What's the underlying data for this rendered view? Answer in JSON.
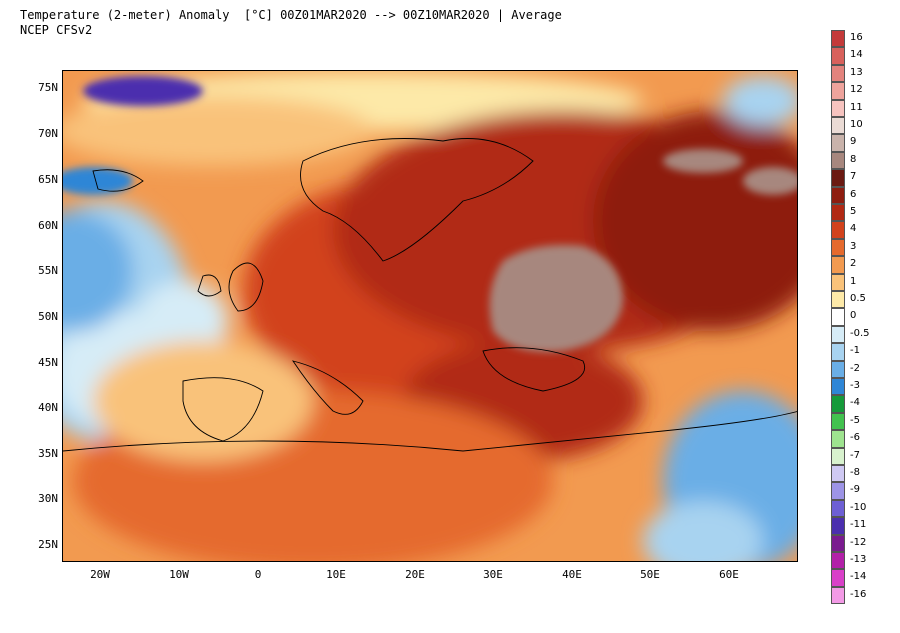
{
  "header": {
    "title_line1": "Temperature (2-meter) Anomaly  [°C] 00Z01MAR2020 --> 00Z10MAR2020 | Average",
    "title_line2": "NCEP CFSv2"
  },
  "map": {
    "lat_labels": [
      "75N",
      "70N",
      "65N",
      "60N",
      "55N",
      "50N",
      "45N",
      "40N",
      "35N",
      "30N",
      "25N"
    ],
    "lon_labels": [
      "20W",
      "10W",
      "0",
      "10E",
      "20E",
      "30E",
      "40E",
      "50E",
      "60E"
    ]
  },
  "colorbar": {
    "levels": [
      {
        "label": "16",
        "color": "#c33a3a"
      },
      {
        "label": "14",
        "color": "#d8615c"
      },
      {
        "label": "13",
        "color": "#e3837d"
      },
      {
        "label": "12",
        "color": "#eea39c"
      },
      {
        "label": "11",
        "color": "#f6c3bf"
      },
      {
        "label": "10",
        "color": "#eadbd5"
      },
      {
        "label": "9",
        "color": "#c9b3ab"
      },
      {
        "label": "8",
        "color": "#a7877e"
      },
      {
        "label": "7",
        "color": "#6b1a12"
      },
      {
        "label": "6",
        "color": "#8e1d10"
      },
      {
        "label": "5",
        "color": "#b12914"
      },
      {
        "label": "4",
        "color": "#d2421c"
      },
      {
        "label": "3",
        "color": "#e56a2e"
      },
      {
        "label": "2",
        "color": "#f29a50"
      },
      {
        "label": "1",
        "color": "#f9c27a"
      },
      {
        "label": "0.5",
        "color": "#fde9a8"
      },
      {
        "label": "0",
        "color": "#ffffff"
      },
      {
        "label": "-0.5",
        "color": "#d6ecf7"
      },
      {
        "label": "-1",
        "color": "#a8d3f0"
      },
      {
        "label": "-2",
        "color": "#6aaee6"
      },
      {
        "label": "-3",
        "color": "#2f86d6"
      },
      {
        "label": "-4",
        "color": "#159a3a"
      },
      {
        "label": "-5",
        "color": "#42c24f"
      },
      {
        "label": "-6",
        "color": "#9ee38f"
      },
      {
        "label": "-7",
        "color": "#d8f2ce"
      },
      {
        "label": "-8",
        "color": "#cfc9f3"
      },
      {
        "label": "-9",
        "color": "#9d94e6"
      },
      {
        "label": "-10",
        "color": "#6d5fd4"
      },
      {
        "label": "-11",
        "color": "#4b2fae"
      },
      {
        "label": "-12",
        "color": "#7a1b8f"
      },
      {
        "label": "-13",
        "color": "#b220a8"
      },
      {
        "label": "-14",
        "color": "#d940c8"
      },
      {
        "label": "-16",
        "color": "#f39ae6"
      }
    ]
  }
}
